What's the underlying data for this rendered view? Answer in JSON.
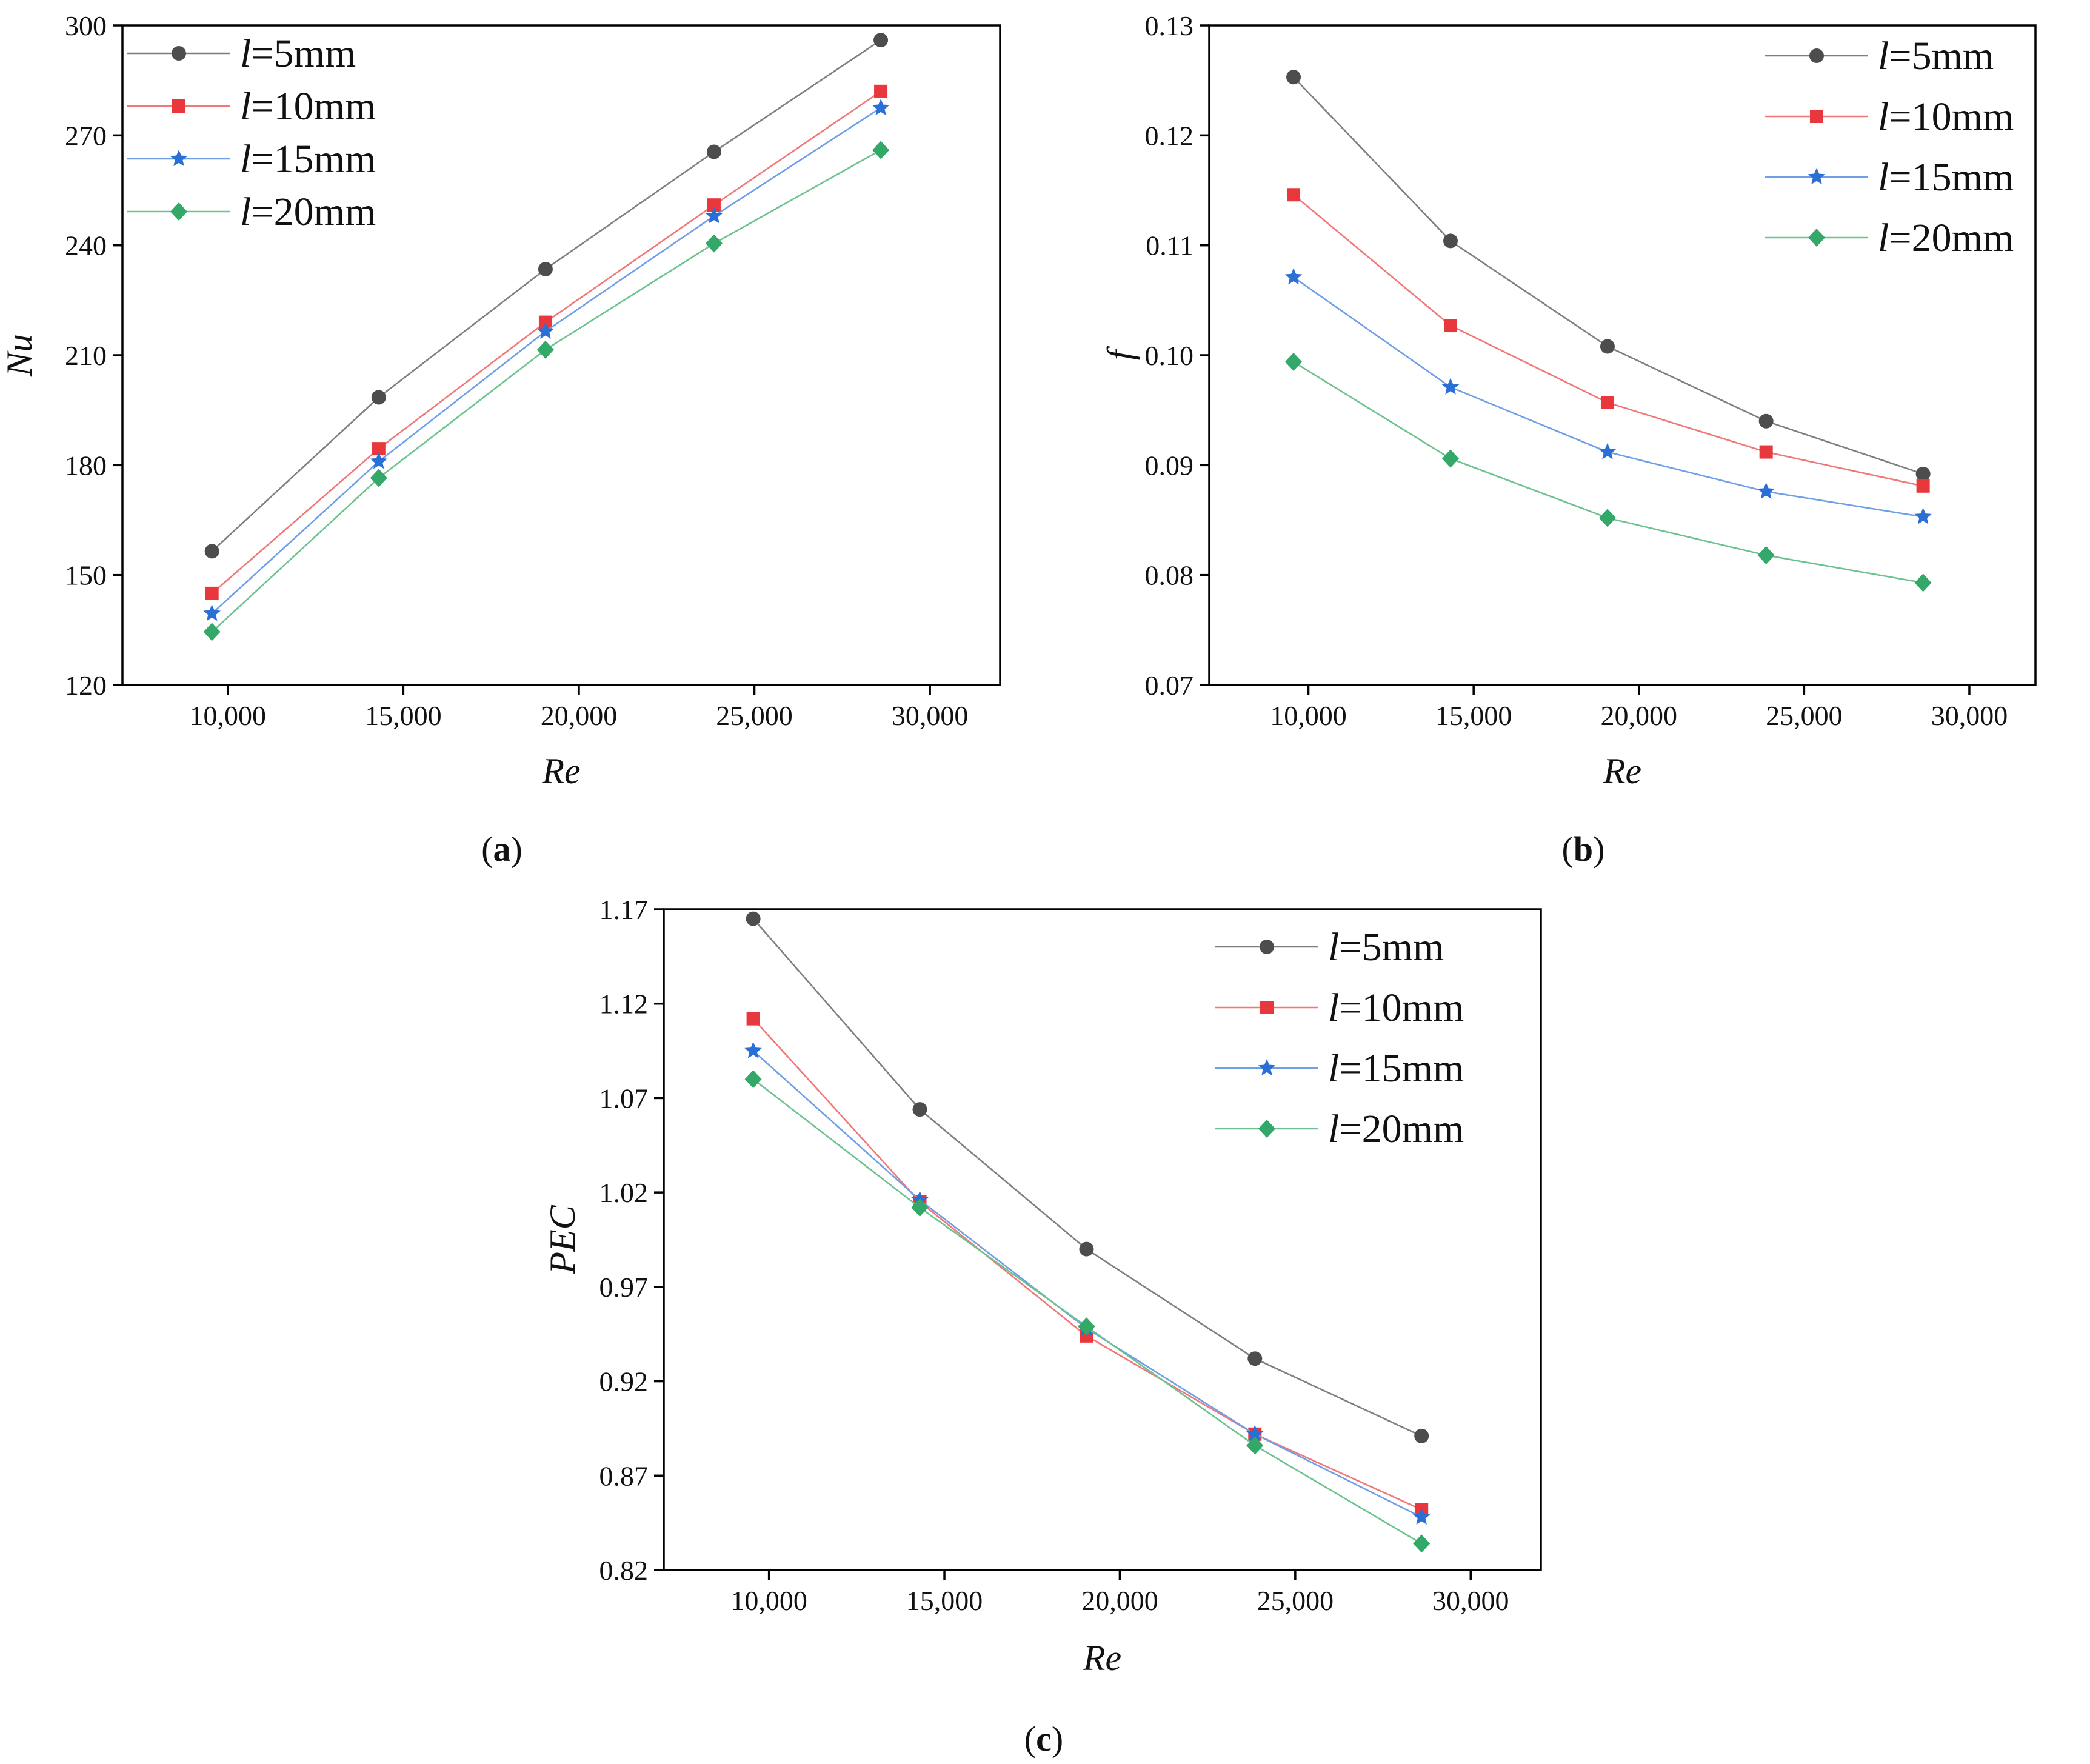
{
  "colors": {
    "l5": "#4d4d4d",
    "l10": "#e8383d",
    "l15": "#2a6fd6",
    "l20": "#33a868",
    "l5_line": "#7f7f7f",
    "l10_line": "#f07878",
    "l15_line": "#6f9fe6",
    "l20_line": "#6dc290"
  },
  "markers": {
    "l5": "circle",
    "l10": "square",
    "l15": "star",
    "l20": "diamond"
  },
  "chart_data": [
    {
      "id": "a",
      "type": "line",
      "panel_label": "a",
      "xlabel": "Re",
      "ylabel": "Nu",
      "xlim": [
        7000,
        32000
      ],
      "ylim": [
        120,
        300
      ],
      "xticks": [
        10000,
        15000,
        20000,
        25000,
        30000
      ],
      "xtick_labels": [
        "10,000",
        "15,000",
        "20,000",
        "25,000",
        "30,000"
      ],
      "yticks": [
        120,
        150,
        180,
        210,
        240,
        270,
        300
      ],
      "ytick_labels": [
        "120",
        "150",
        "180",
        "210",
        "240",
        "270",
        "300"
      ],
      "legend_position": "top-left",
      "x": [
        9550,
        14300,
        19050,
        23850,
        28600
      ],
      "series": [
        {
          "key": "l5",
          "name_italic": "l",
          "name_rest": "=5mm",
          "values": [
            156.5,
            198.5,
            233.5,
            265.5,
            296.0
          ]
        },
        {
          "key": "l10",
          "name_italic": "l",
          "name_rest": "=10mm",
          "values": [
            145.0,
            184.5,
            219.0,
            251.0,
            282.0
          ]
        },
        {
          "key": "l15",
          "name_italic": "l",
          "name_rest": "=15mm",
          "values": [
            139.5,
            181.0,
            216.5,
            248.0,
            277.5
          ]
        },
        {
          "key": "l20",
          "name_italic": "l",
          "name_rest": "=20mm",
          "values": [
            134.5,
            176.5,
            211.5,
            240.5,
            266.0
          ]
        }
      ]
    },
    {
      "id": "b",
      "type": "line",
      "panel_label": "b",
      "xlabel": "Re",
      "ylabel": "f",
      "xlim": [
        7000,
        32000
      ],
      "ylim": [
        0.07,
        0.13
      ],
      "xticks": [
        10000,
        15000,
        20000,
        25000,
        30000
      ],
      "xtick_labels": [
        "10,000",
        "15,000",
        "20,000",
        "25,000",
        "30,000"
      ],
      "yticks": [
        0.07,
        0.08,
        0.09,
        0.1,
        0.11,
        0.12,
        0.13
      ],
      "ytick_labels": [
        "0.07",
        "0.08",
        "0.09",
        "0.10",
        "0.11",
        "0.12",
        "0.13"
      ],
      "legend_position": "top-right",
      "x": [
        9550,
        14300,
        19050,
        23850,
        28600
      ],
      "series": [
        {
          "key": "l5",
          "name_italic": "l",
          "name_rest": "=5mm",
          "values": [
            0.1253,
            0.1104,
            0.1008,
            0.094,
            0.0892
          ]
        },
        {
          "key": "l10",
          "name_italic": "l",
          "name_rest": "=10mm",
          "values": [
            0.1146,
            0.1027,
            0.0957,
            0.0912,
            0.0881
          ]
        },
        {
          "key": "l15",
          "name_italic": "l",
          "name_rest": "=15mm",
          "values": [
            0.1071,
            0.0971,
            0.0912,
            0.0876,
            0.0853
          ]
        },
        {
          "key": "l20",
          "name_italic": "l",
          "name_rest": "=20mm",
          "values": [
            0.0994,
            0.0906,
            0.0852,
            0.0818,
            0.0793
          ]
        }
      ]
    },
    {
      "id": "c",
      "type": "line",
      "panel_label": "c",
      "xlabel": "Re",
      "ylabel": "PEC",
      "xlim": [
        7000,
        32000
      ],
      "ylim": [
        0.82,
        1.17
      ],
      "xticks": [
        10000,
        15000,
        20000,
        25000,
        30000
      ],
      "xtick_labels": [
        "10,000",
        "15,000",
        "20,000",
        "25,000",
        "30,000"
      ],
      "yticks": [
        0.82,
        0.87,
        0.92,
        0.97,
        1.02,
        1.07,
        1.12,
        1.17
      ],
      "ytick_labels": [
        "0.82",
        "0.87",
        "0.92",
        "0.97",
        "1.02",
        "1.07",
        "1.12",
        "1.17"
      ],
      "legend_position": "top-right",
      "x": [
        9550,
        14300,
        19050,
        23850,
        28600
      ],
      "series": [
        {
          "key": "l5",
          "name_italic": "l",
          "name_rest": "=5mm",
          "values": [
            1.165,
            1.064,
            0.99,
            0.932,
            0.891
          ]
        },
        {
          "key": "l10",
          "name_italic": "l",
          "name_rest": "=10mm",
          "values": [
            1.112,
            1.015,
            0.944,
            0.892,
            0.852
          ]
        },
        {
          "key": "l15",
          "name_italic": "l",
          "name_rest": "=15mm",
          "values": [
            1.095,
            1.016,
            0.948,
            0.892,
            0.848
          ]
        },
        {
          "key": "l20",
          "name_italic": "l",
          "name_rest": "=20mm",
          "values": [
            1.08,
            1.012,
            0.949,
            0.886,
            0.834
          ]
        }
      ]
    }
  ]
}
